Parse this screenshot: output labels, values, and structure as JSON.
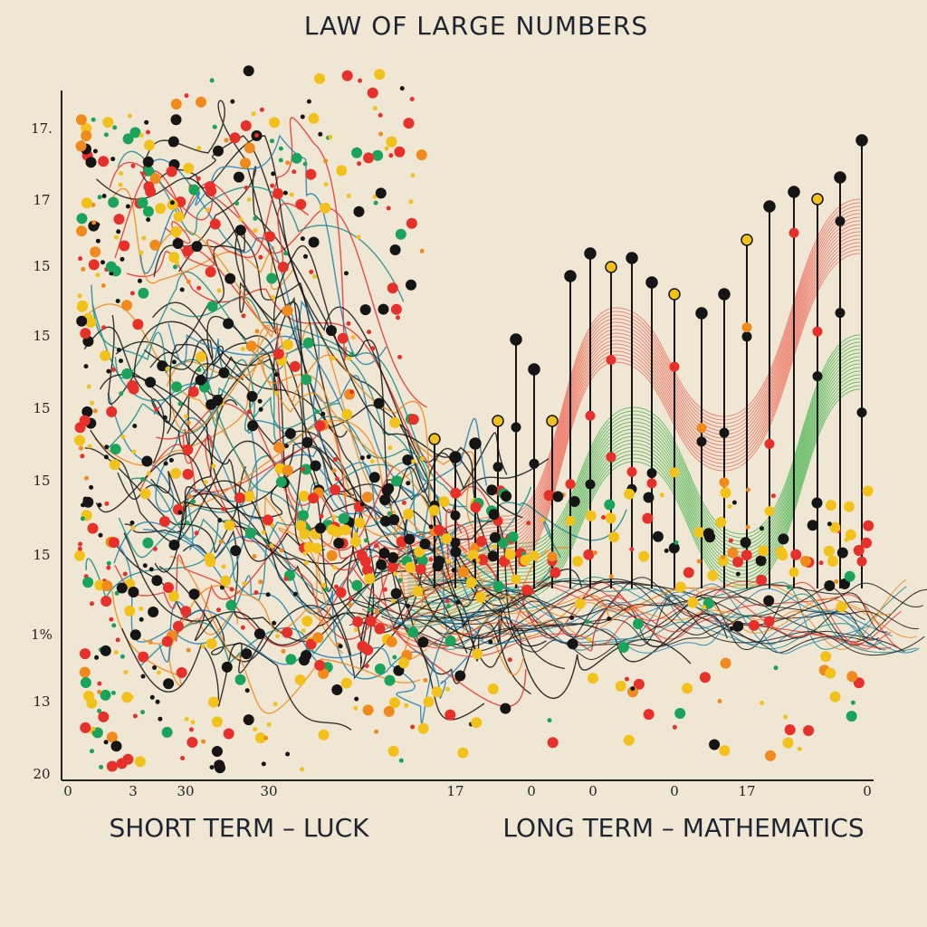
{
  "header": {
    "title": "LAW OF LARGE NUMBERS"
  },
  "axis": {
    "y_labels": [
      "17.",
      "17",
      "15",
      "15",
      "15",
      "15",
      "15",
      "1%",
      "13",
      "20"
    ],
    "x_labels": [
      "0",
      "3",
      "30",
      "30",
      "17",
      "0",
      "0",
      "0",
      "17",
      "0"
    ]
  },
  "captions": {
    "left": "SHORT TERM – LUCK",
    "right": "LONG TERM – MATHEMATICS"
  }
}
